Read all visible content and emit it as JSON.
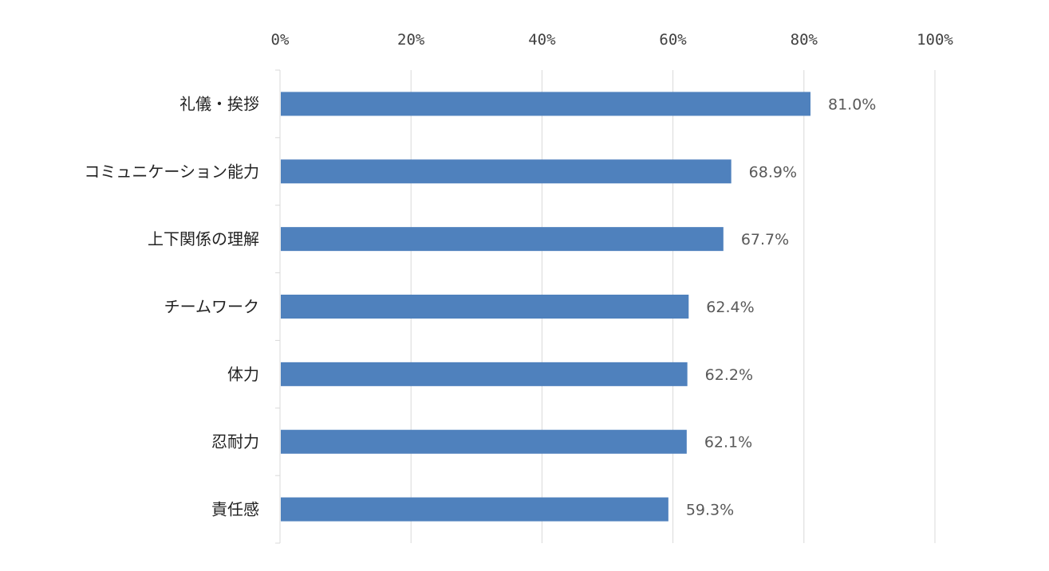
{
  "chart_data": {
    "type": "bar",
    "orientation": "horizontal",
    "categories": [
      "礼儀・挨拶",
      "コミュニケーション能力",
      "上下関係の理解",
      "チームワーク",
      "体力",
      "忍耐力",
      "責任感"
    ],
    "values": [
      81.0,
      68.9,
      67.7,
      62.4,
      62.2,
      62.1,
      59.3
    ],
    "data_labels": [
      "81.0%",
      "68.9%",
      "67.7%",
      "62.4%",
      "62.2%",
      "62.1%",
      "59.3%"
    ],
    "x_ticks": [
      "0%",
      "20%",
      "40%",
      "60%",
      "80%",
      "100%"
    ],
    "xlim": [
      0,
      100
    ],
    "title": "",
    "xlabel": "",
    "ylabel": "",
    "x_axis_position": "top",
    "grid": true,
    "legend": "none",
    "bar_color": "#4f81bd",
    "grid_color": "#d9d9d9"
  }
}
